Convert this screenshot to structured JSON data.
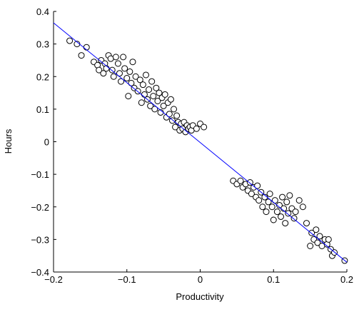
{
  "chart_data": {
    "type": "scatter",
    "xlabel": "Productivity",
    "ylabel": "Hours",
    "xlim": [
      -0.2,
      0.2
    ],
    "ylim": [
      -0.4,
      0.4
    ],
    "xticks": [
      {
        "value": -0.2,
        "label": "−0.2"
      },
      {
        "value": -0.1,
        "label": "−0.1"
      },
      0,
      0.1,
      0.2
    ],
    "yticks": [
      {
        "value": -0.4,
        "label": "−0.4"
      },
      {
        "value": -0.3,
        "label": "−0.3"
      },
      {
        "value": -0.2,
        "label": "−0.2"
      },
      {
        "value": -0.1,
        "label": "−0.1"
      },
      0,
      0.1,
      0.2,
      0.3,
      0.4
    ],
    "marker_color": "#000000",
    "x": [
      -0.178,
      -0.168,
      -0.162,
      -0.155,
      -0.145,
      -0.14,
      -0.138,
      -0.135,
      -0.132,
      -0.13,
      -0.128,
      -0.125,
      -0.122,
      -0.12,
      -0.118,
      -0.115,
      -0.112,
      -0.11,
      -0.108,
      -0.105,
      -0.103,
      -0.1,
      -0.098,
      -0.096,
      -0.094,
      -0.092,
      -0.09,
      -0.088,
      -0.085,
      -0.082,
      -0.08,
      -0.078,
      -0.076,
      -0.074,
      -0.072,
      -0.07,
      -0.068,
      -0.066,
      -0.064,
      -0.062,
      -0.06,
      -0.058,
      -0.056,
      -0.054,
      -0.052,
      -0.05,
      -0.048,
      -0.046,
      -0.044,
      -0.042,
      -0.04,
      -0.038,
      -0.036,
      -0.034,
      -0.032,
      -0.03,
      -0.028,
      -0.026,
      -0.024,
      -0.022,
      -0.02,
      -0.018,
      -0.016,
      -0.014,
      -0.012,
      -0.01,
      -0.005,
      0.0,
      0.005,
      0.045,
      0.05,
      0.055,
      0.058,
      0.062,
      0.065,
      0.068,
      0.07,
      0.073,
      0.076,
      0.078,
      0.08,
      0.083,
      0.085,
      0.088,
      0.09,
      0.093,
      0.095,
      0.098,
      0.1,
      0.102,
      0.105,
      0.108,
      0.11,
      0.112,
      0.114,
      0.116,
      0.118,
      0.12,
      0.122,
      0.125,
      0.128,
      0.13,
      0.135,
      0.14,
      0.145,
      0.15,
      0.152,
      0.155,
      0.158,
      0.16,
      0.163,
      0.166,
      0.17,
      0.173,
      0.175,
      0.178,
      0.18,
      0.183,
      0.197
    ],
    "values": [
      0.31,
      0.3,
      0.265,
      0.29,
      0.245,
      0.235,
      0.22,
      0.25,
      0.21,
      0.24,
      0.225,
      0.265,
      0.255,
      0.22,
      0.2,
      0.26,
      0.24,
      0.21,
      0.185,
      0.26,
      0.225,
      0.195,
      0.14,
      0.215,
      0.18,
      0.245,
      0.165,
      0.2,
      0.155,
      0.19,
      0.12,
      0.175,
      0.145,
      0.205,
      0.13,
      0.16,
      0.11,
      0.185,
      0.14,
      0.1,
      0.165,
      0.125,
      0.15,
      0.09,
      0.135,
      0.11,
      0.145,
      0.075,
      0.12,
      0.085,
      0.13,
      0.065,
      0.1,
      0.045,
      0.08,
      0.06,
      0.035,
      0.055,
      0.04,
      0.06,
      0.03,
      0.05,
      0.04,
      0.045,
      0.035,
      0.05,
      0.04,
      0.055,
      0.045,
      -0.12,
      -0.13,
      -0.12,
      -0.14,
      -0.13,
      -0.15,
      -0.125,
      -0.16,
      -0.14,
      -0.17,
      -0.135,
      -0.18,
      -0.155,
      -0.2,
      -0.17,
      -0.215,
      -0.185,
      -0.16,
      -0.2,
      -0.24,
      -0.18,
      -0.215,
      -0.195,
      -0.23,
      -0.17,
      -0.205,
      -0.25,
      -0.185,
      -0.22,
      -0.165,
      -0.205,
      -0.235,
      -0.215,
      -0.18,
      -0.2,
      -0.25,
      -0.32,
      -0.28,
      -0.3,
      -0.27,
      -0.31,
      -0.29,
      -0.32,
      -0.3,
      -0.315,
      -0.3,
      -0.33,
      -0.35,
      -0.34,
      -0.365
    ],
    "fit": {
      "x": [
        -0.2,
        0.2
      ],
      "values": [
        0.365,
        -0.37
      ],
      "color": "#0000ff"
    }
  }
}
